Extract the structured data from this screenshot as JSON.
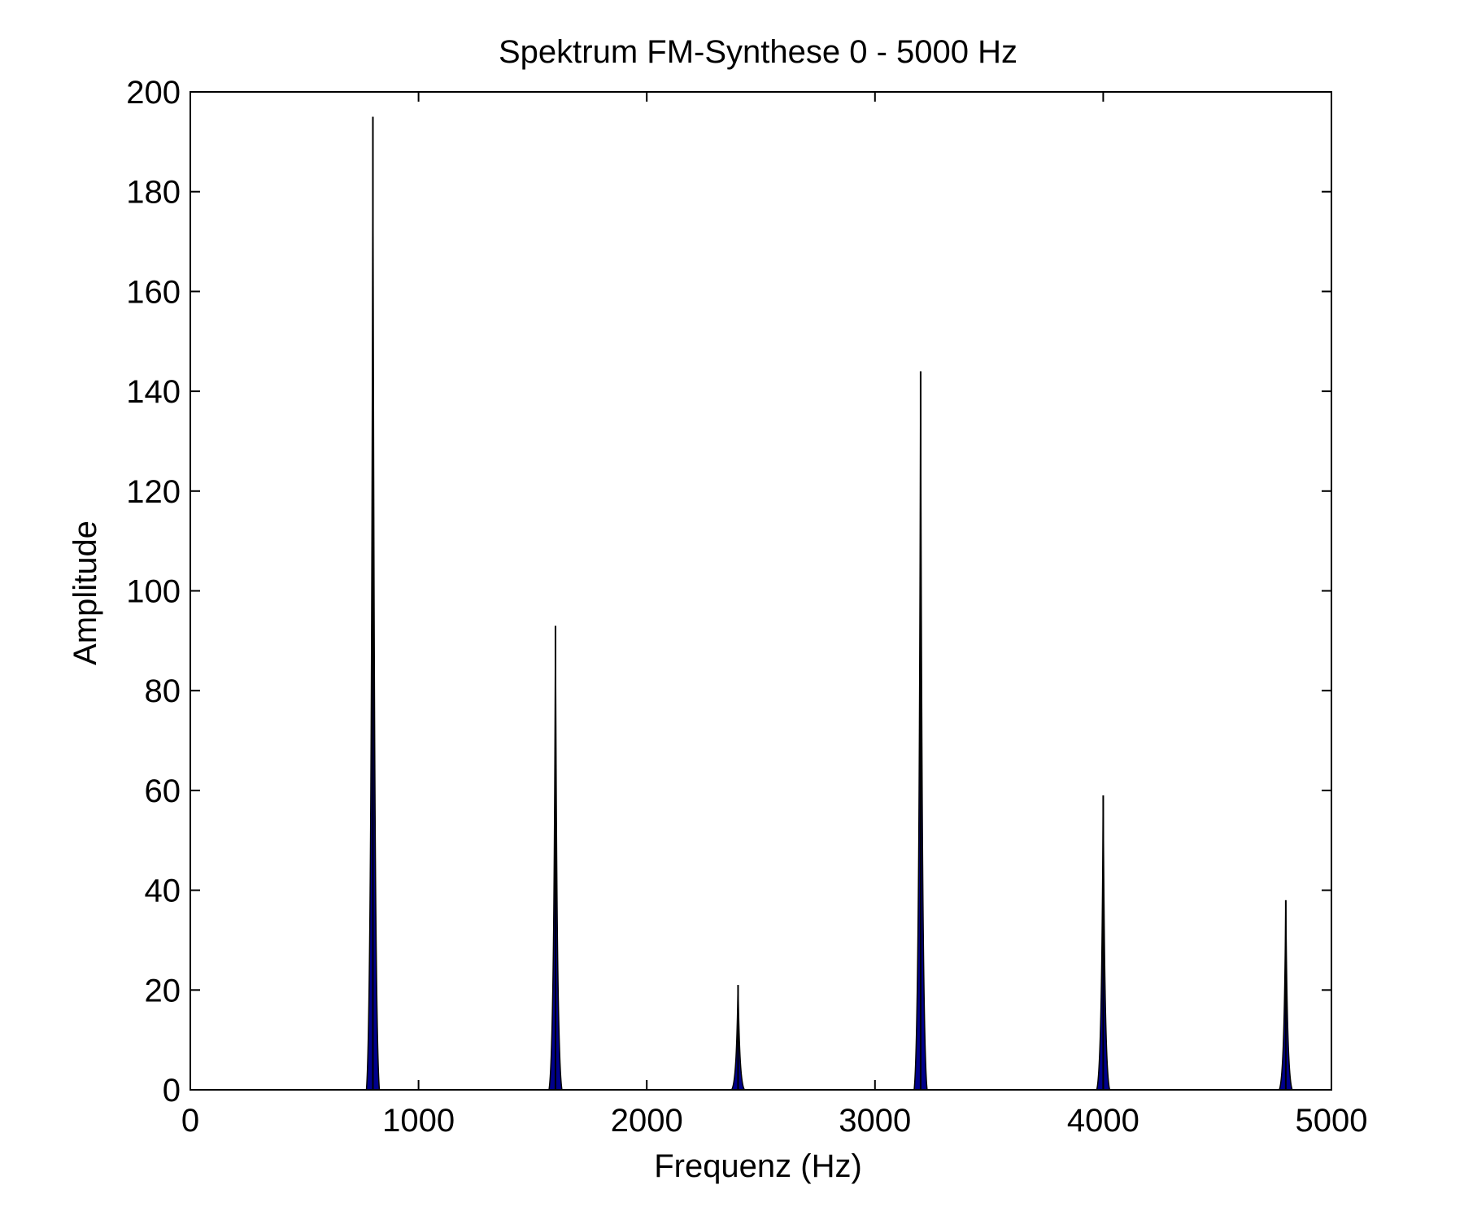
{
  "chart_data": {
    "type": "area",
    "title": "Spektrum FM-Synthese 0 - 5000 Hz",
    "xlabel": "Frequenz (Hz)",
    "ylabel": "Amplitude",
    "xlim": [
      0,
      5000
    ],
    "ylim": [
      0,
      200
    ],
    "xticks": [
      0,
      1000,
      2000,
      3000,
      4000,
      5000
    ],
    "yticks": [
      0,
      20,
      40,
      60,
      80,
      100,
      120,
      140,
      160,
      180,
      200
    ],
    "xtick_labels": [
      "0",
      "1000",
      "2000",
      "3000",
      "4000",
      "5000"
    ],
    "ytick_labels": [
      "0",
      "20",
      "40",
      "60",
      "80",
      "100",
      "120",
      "140",
      "160",
      "180",
      "200"
    ],
    "grid": false,
    "legend": "none",
    "fill_color": "#00008B",
    "line_color": "#000000",
    "series": [
      {
        "peaks": [
          {
            "x": 800,
            "y": 195
          },
          {
            "x": 1600,
            "y": 93
          },
          {
            "x": 2400,
            "y": 21
          },
          {
            "x": 3200,
            "y": 144
          },
          {
            "x": 4000,
            "y": 59
          },
          {
            "x": 4800,
            "y": 38
          }
        ]
      }
    ]
  }
}
